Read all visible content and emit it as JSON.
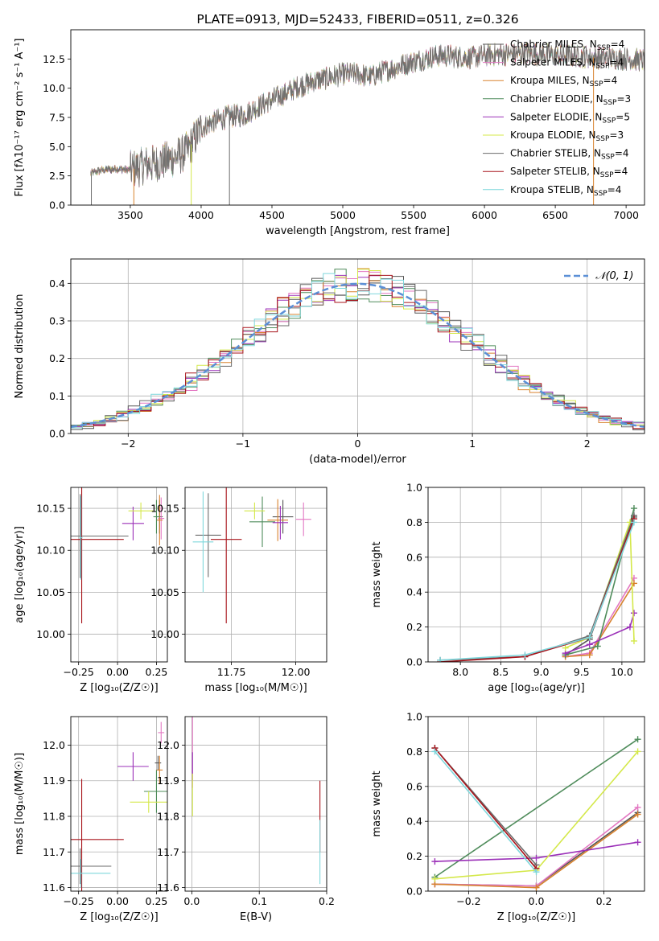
{
  "colors": [
    "#555555",
    "#e377c2",
    "#d8822e",
    "#4f8c5b",
    "#9b30b8",
    "#d4e84a",
    "#6b6b6b",
    "#a8141b",
    "#7fd7dc"
  ],
  "chart_data": [
    {
      "id": "spectrum",
      "type": "line",
      "title": "PLATE=0913, MJD=52433, FIBERID=0511, z=0.326",
      "xlabel": "wavelength [Angstrom, rest frame]",
      "ylabel": "Flux [fλ10⁻¹⁷ erg cm⁻² s⁻¹ A⁻¹]",
      "xlim": [
        3080,
        7130
      ],
      "ylim": [
        0,
        15
      ],
      "xticks": [
        3500,
        4000,
        4500,
        5000,
        5500,
        6000,
        6500,
        7000
      ],
      "yticks": [
        0.0,
        2.5,
        5.0,
        7.5,
        10.0,
        12.5
      ],
      "ytick_labels": [
        "0.0",
        "2.5",
        "5.0",
        "7.5",
        "10.0",
        "12.5"
      ],
      "legend_position": "top-right",
      "legend": [
        {
          "label": "Chabrier MILES, N",
          "sub": "SSP",
          "tail": "=4"
        },
        {
          "label": "Salpeter MILES, N",
          "sub": "SSP",
          "tail": "=4"
        },
        {
          "label": "Kroupa MILES, N",
          "sub": "SSP",
          "tail": "=4"
        },
        {
          "label": "Chabrier ELODIE, N",
          "sub": "SSP",
          "tail": "=3"
        },
        {
          "label": "Salpeter ELODIE, N",
          "sub": "SSP",
          "tail": "=5"
        },
        {
          "label": "Kroupa ELODIE, N",
          "sub": "SSP",
          "tail": "=3"
        },
        {
          "label": "Chabrier STELIB, N",
          "sub": "SSP",
          "tail": "=4"
        },
        {
          "label": "Salpeter STELIB, N",
          "sub": "SSP",
          "tail": "=4"
        },
        {
          "label": "Kroupa STELIB, N",
          "sub": "SSP",
          "tail": "=4"
        }
      ],
      "continuum": {
        "x": [
          3220,
          3300,
          3400,
          3500,
          3600,
          3700,
          3800,
          3900,
          4000,
          4100,
          4200,
          4300,
          4400,
          4500,
          4600,
          4700,
          4800,
          4900,
          5000,
          5100,
          5200,
          5300,
          5400,
          5500,
          5600,
          5700,
          5800,
          5900,
          6000,
          6100,
          6200,
          6300,
          6400,
          6500,
          6600,
          6700,
          6800,
          6900,
          7000,
          7100
        ],
        "y": [
          2.7,
          3.0,
          3.1,
          3.0,
          3.4,
          3.6,
          4.0,
          4.6,
          6.6,
          7.2,
          7.6,
          7.7,
          8.4,
          9.0,
          9.6,
          10.2,
          10.6,
          10.9,
          11.2,
          11.2,
          11.0,
          11.5,
          11.9,
          12.3,
          12.6,
          12.8,
          12.7,
          12.6,
          12.8,
          12.9,
          12.9,
          13.0,
          12.9,
          12.8,
          12.8,
          12.7,
          12.6,
          12.6,
          12.5,
          12.4
        ]
      },
      "drops": [
        {
          "x": 3225,
          "y": 0.0,
          "series": 6
        },
        {
          "x": 3525,
          "y": 0.0,
          "series": 2
        },
        {
          "x": 3930,
          "y": 0.0,
          "series": 5
        },
        {
          "x": 4200,
          "y": 0.0,
          "series": 6
        },
        {
          "x": 6770,
          "y": 0.0,
          "series": 2
        }
      ]
    },
    {
      "id": "residuals",
      "type": "histogram",
      "xlabel": "(data-model)/error",
      "ylabel": "Normed distribution",
      "xlim": [
        -2.5,
        2.5
      ],
      "ylim": [
        0,
        0.465
      ],
      "xticks": [
        -2,
        -1,
        0,
        1,
        2
      ],
      "yticks": [
        0.0,
        0.1,
        0.2,
        0.3,
        0.4
      ],
      "ytick_labels": [
        "0.0",
        "0.1",
        "0.2",
        "0.3",
        "0.4"
      ],
      "bin_width": 0.1,
      "reference_label": "𝒩(0, 1)",
      "reference_color": "#5b8fd6",
      "legend_position": "top-right"
    },
    {
      "id": "age-vs-Z",
      "type": "scatter",
      "xlabel": "Z [log₁₀(Z/Z☉)]",
      "ylabel": "age  [log₁₀(age/yr)]",
      "xlim": [
        -0.3,
        0.32
      ],
      "ylim": [
        9.967,
        10.175
      ],
      "xticks": [
        -0.25,
        0.0,
        0.25
      ],
      "xtick_labels": [
        "-0.25",
        "0.00",
        "0.25"
      ],
      "yticks": [
        10.0,
        10.05,
        10.1,
        10.15
      ],
      "ytick_labels": [
        "10.00",
        "10.05",
        "10.10",
        "10.15"
      ],
      "points": [
        {
          "s": 0,
          "x": 0.27,
          "y": 10.14,
          "xerr": 0.02,
          "yerr": 0.02
        },
        {
          "s": 1,
          "x": 0.28,
          "y": 10.138,
          "xerr": 0.02,
          "yerr": 0.025
        },
        {
          "s": 2,
          "x": 0.27,
          "y": 10.136,
          "xerr": 0.02,
          "yerr": 0.03
        },
        {
          "s": 3,
          "x": 0.25,
          "y": 10.14,
          "xerr": 0.02,
          "yerr": 0.02
        },
        {
          "s": 4,
          "x": 0.1,
          "y": 10.132,
          "xerr": 0.07,
          "yerr": 0.02
        },
        {
          "s": 5,
          "x": 0.15,
          "y": 10.147,
          "xerr": 0.08,
          "yerr": 0.01
        },
        {
          "s": 6,
          "x": -0.24,
          "y": 10.117,
          "xerr": 0.31,
          "yerr": 0.05
        },
        {
          "s": 7,
          "x": -0.23,
          "y": 10.113,
          "xerr": 0.27,
          "yerr": 0.1
        },
        {
          "s": 8,
          "x": -0.235,
          "y": 10.115,
          "xerr": 0.01,
          "yerr": 0.05
        }
      ]
    },
    {
      "id": "age-vs-mass",
      "type": "scatter",
      "xlabel": "mass [log₁₀(M/M☉)]",
      "xlim": [
        11.57,
        12.12
      ],
      "ylim": [
        9.967,
        10.175
      ],
      "xticks": [
        11.75,
        12.0
      ],
      "xtick_labels": [
        "11.75",
        "12.00"
      ],
      "yticks": [
        10.0,
        10.05,
        10.1,
        10.15
      ],
      "ytick_labels": [
        "10.00",
        "10.05",
        "10.10",
        "10.15"
      ],
      "points": [
        {
          "s": 0,
          "x": 11.95,
          "y": 10.14,
          "xerr": 0.04,
          "yerr": 0.02
        },
        {
          "s": 1,
          "x": 12.03,
          "y": 10.137,
          "xerr": 0.03,
          "yerr": 0.02
        },
        {
          "s": 2,
          "x": 11.93,
          "y": 10.136,
          "xerr": 0.04,
          "yerr": 0.025
        },
        {
          "s": 3,
          "x": 11.87,
          "y": 10.134,
          "xerr": 0.05,
          "yerr": 0.03
        },
        {
          "s": 4,
          "x": 11.94,
          "y": 10.133,
          "xerr": 0.03,
          "yerr": 0.02
        },
        {
          "s": 5,
          "x": 11.84,
          "y": 10.147,
          "xerr": 0.04,
          "yerr": 0.01
        },
        {
          "s": 6,
          "x": 11.66,
          "y": 10.118,
          "xerr": 0.05,
          "yerr": 0.05
        },
        {
          "s": 7,
          "x": 11.73,
          "y": 10.113,
          "xerr": 0.06,
          "yerr": 0.1
        },
        {
          "s": 8,
          "x": 11.64,
          "y": 10.11,
          "xerr": 0.04,
          "yerr": 0.06
        }
      ]
    },
    {
      "id": "massweight-vs-age",
      "type": "line",
      "xlabel": "age  [log₁₀(age/yr)]",
      "ylabel": "mass weight",
      "xlim": [
        7.6,
        10.28
      ],
      "ylim": [
        0,
        1
      ],
      "xticks": [
        8.0,
        8.5,
        9.0,
        9.5,
        10.0
      ],
      "xtick_labels": [
        "8.0",
        "8.5",
        "9.0",
        "9.5",
        "10.0"
      ],
      "yticks": [
        0.0,
        0.2,
        0.4,
        0.6,
        0.8,
        1.0
      ],
      "ytick_labels": [
        "0.0",
        "0.2",
        "0.4",
        "0.6",
        "0.8",
        "1.0"
      ],
      "series": [
        {
          "s": 0,
          "x": [
            9.3,
            9.6,
            10.15
          ],
          "y": [
            0.04,
            0.13,
            0.83
          ]
        },
        {
          "s": 1,
          "x": [
            9.3,
            9.6,
            10.15
          ],
          "y": [
            0.03,
            0.05,
            0.48
          ]
        },
        {
          "s": 2,
          "x": [
            9.3,
            9.6,
            10.15
          ],
          "y": [
            0.03,
            0.04,
            0.45
          ]
        },
        {
          "s": 3,
          "x": [
            9.3,
            9.7,
            10.15
          ],
          "y": [
            0.04,
            0.09,
            0.88
          ]
        },
        {
          "s": 4,
          "x": [
            9.3,
            9.6,
            10.1,
            10.15
          ],
          "y": [
            0.05,
            0.1,
            0.2,
            0.28
          ]
        },
        {
          "s": 5,
          "x": [
            9.3,
            9.6,
            10.1,
            10.15
          ],
          "y": [
            0.08,
            0.14,
            0.8,
            0.12
          ]
        },
        {
          "s": 6,
          "x": [
            7.75,
            8.8,
            9.6,
            10.15
          ],
          "y": [
            0.01,
            0.03,
            0.15,
            0.84
          ]
        },
        {
          "s": 7,
          "x": [
            7.75,
            8.8,
            9.6,
            10.15
          ],
          "y": [
            0.0,
            0.03,
            0.14,
            0.82
          ]
        },
        {
          "s": 8,
          "x": [
            7.75,
            8.8,
            9.6,
            10.15
          ],
          "y": [
            0.01,
            0.04,
            0.14,
            0.8
          ]
        }
      ]
    },
    {
      "id": "mass-vs-Z",
      "type": "scatter",
      "xlabel": "Z [log₁₀(Z/Z☉)]",
      "ylabel": "mass [log₁₀(M/M☉)]",
      "xlim": [
        -0.3,
        0.32
      ],
      "ylim": [
        11.59,
        12.08
      ],
      "xticks": [
        -0.25,
        0.0,
        0.25
      ],
      "xtick_labels": [
        "-0.25",
        "0.00",
        "0.25"
      ],
      "yticks": [
        11.6,
        11.7,
        11.8,
        11.9,
        12.0
      ],
      "ytick_labels": [
        "11.6",
        "11.7",
        "11.8",
        "11.9",
        "12.0"
      ],
      "points": [
        {
          "s": 0,
          "x": 0.26,
          "y": 11.95,
          "xerr": 0.02,
          "yerr": 0.02
        },
        {
          "s": 1,
          "x": 0.28,
          "y": 12.035,
          "xerr": 0.02,
          "yerr": 0.03
        },
        {
          "s": 2,
          "x": 0.27,
          "y": 11.93,
          "xerr": 0.02,
          "yerr": 0.04
        },
        {
          "s": 3,
          "x": 0.25,
          "y": 11.87,
          "xerr": 0.08,
          "yerr": 0.06
        },
        {
          "s": 4,
          "x": 0.1,
          "y": 11.94,
          "xerr": 0.1,
          "yerr": 0.04
        },
        {
          "s": 5,
          "x": 0.2,
          "y": 11.84,
          "xerr": 0.12,
          "yerr": 0.03
        },
        {
          "s": 6,
          "x": -0.24,
          "y": 11.66,
          "xerr": 0.2,
          "yerr": 0.05
        },
        {
          "s": 7,
          "x": -0.23,
          "y": 11.735,
          "xerr": 0.27,
          "yerr": 0.17
        },
        {
          "s": 8,
          "x": -0.235,
          "y": 11.64,
          "xerr": 0.19,
          "yerr": 0.04
        }
      ]
    },
    {
      "id": "mass-vs-ebv",
      "type": "scatter",
      "xlabel": "E(B-V)",
      "xlim": [
        -0.01,
        0.2
      ],
      "ylim": [
        11.59,
        12.08
      ],
      "xticks": [
        0.0,
        0.1,
        0.2
      ],
      "xtick_labels": [
        "0.0",
        "0.1",
        "0.2"
      ],
      "yticks": [
        11.6,
        11.7,
        11.8,
        11.9,
        12.0
      ],
      "ytick_labels": [
        "11.6",
        "11.7",
        "11.8",
        "11.9",
        "12.0"
      ],
      "points": [
        {
          "s": 1,
          "x": 0.001,
          "y": 11.98,
          "xerr": 0.0,
          "yerr": 0.1
        },
        {
          "s": 4,
          "x": 0.001,
          "y": 11.94,
          "xerr": 0.0,
          "yerr": 0.04
        },
        {
          "s": 5,
          "x": 0.001,
          "y": 11.86,
          "xerr": 0.0,
          "yerr": 0.06
        },
        {
          "s": 7,
          "x": 0.19,
          "y": 11.8,
          "xerr": 0.0,
          "yerr": 0.1
        },
        {
          "s": 8,
          "x": 0.19,
          "y": 11.7,
          "xerr": 0.0,
          "yerr": 0.09
        }
      ]
    },
    {
      "id": "massweight-vs-Z",
      "type": "line",
      "xlabel": "Z [log₁₀(Z/Z☉)]",
      "ylabel": "mass weight",
      "xlim": [
        -0.32,
        0.32
      ],
      "ylim": [
        0,
        1
      ],
      "xticks": [
        -0.2,
        0.0,
        0.2
      ],
      "xtick_labels": [
        "-0.2",
        "0.0",
        "0.2"
      ],
      "yticks": [
        0.0,
        0.2,
        0.4,
        0.6,
        0.8,
        1.0
      ],
      "ytick_labels": [
        "0.0",
        "0.2",
        "0.4",
        "0.6",
        "0.8",
        "1.0"
      ],
      "series": [
        {
          "s": 0,
          "x": [
            -0.3,
            0.0,
            0.3
          ],
          "y": [
            0.04,
            0.03,
            0.45
          ]
        },
        {
          "s": 1,
          "x": [
            -0.3,
            0.0,
            0.3
          ],
          "y": [
            0.04,
            0.03,
            0.48
          ]
        },
        {
          "s": 2,
          "x": [
            -0.3,
            0.0,
            0.3
          ],
          "y": [
            0.04,
            0.02,
            0.44
          ]
        },
        {
          "s": 3,
          "x": [
            -0.3,
            0.3
          ],
          "y": [
            0.08,
            0.87
          ]
        },
        {
          "s": 4,
          "x": [
            -0.3,
            0.0,
            0.3
          ],
          "y": [
            0.17,
            0.19,
            0.28
          ]
        },
        {
          "s": 5,
          "x": [
            -0.3,
            0.0,
            0.3
          ],
          "y": [
            0.07,
            0.12,
            0.8
          ]
        },
        {
          "s": 6,
          "x": [
            -0.3,
            0.0
          ],
          "y": [
            0.82,
            0.15
          ]
        },
        {
          "s": 7,
          "x": [
            -0.3,
            0.0
          ],
          "y": [
            0.82,
            0.13
          ]
        },
        {
          "s": 8,
          "x": [
            -0.3,
            0.0
          ],
          "y": [
            0.8,
            0.11
          ]
        }
      ]
    }
  ]
}
